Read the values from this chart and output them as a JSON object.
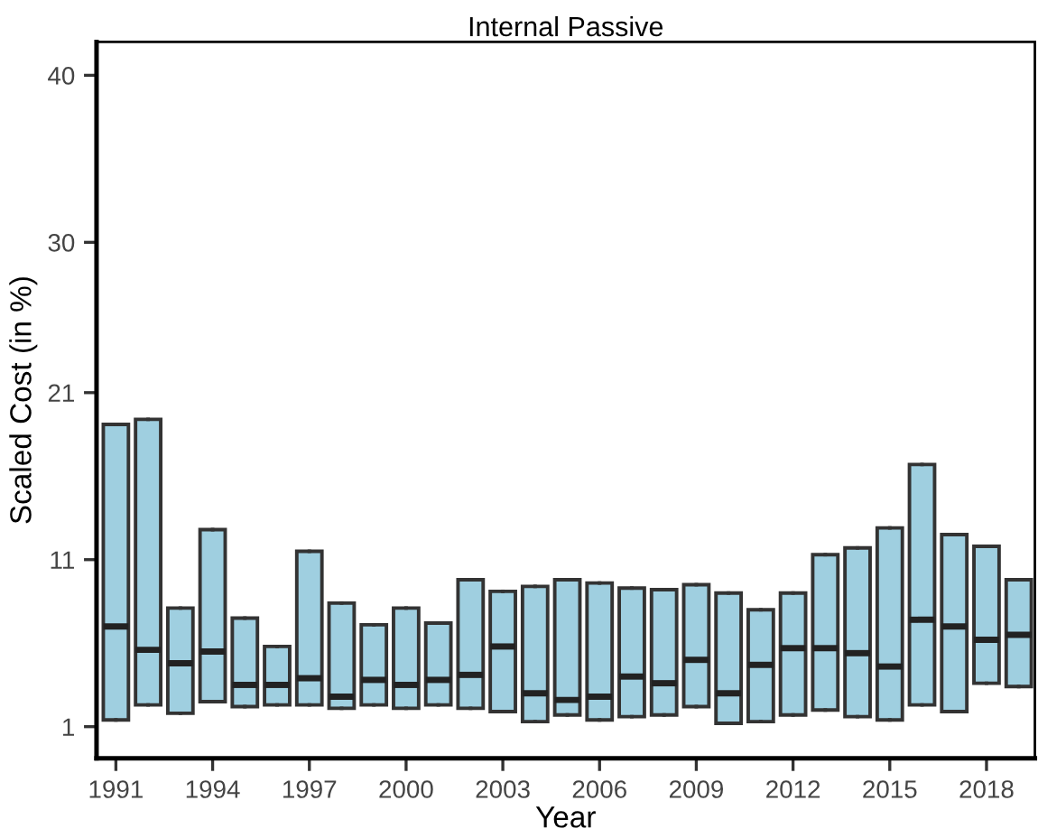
{
  "chart_data": {
    "type": "box",
    "title": "Internal Passive",
    "xlabel": "Year",
    "ylabel": "Scaled Cost (in %)",
    "x": [
      1991,
      1992,
      1993,
      1994,
      1995,
      1996,
      1997,
      1998,
      1999,
      2000,
      2001,
      2002,
      2003,
      2004,
      2005,
      2006,
      2007,
      2008,
      2009,
      2010,
      2011,
      2012,
      2013,
      2014,
      2015,
      2016,
      2017,
      2018,
      2019
    ],
    "color": "#9fcfe0",
    "boxes": [
      {
        "low": 1.4,
        "q1": 1.4,
        "median": 7.0,
        "q3": 19.1,
        "high": 19.1
      },
      {
        "low": 2.3,
        "q1": 2.3,
        "median": 5.6,
        "q3": 19.4,
        "high": 19.4
      },
      {
        "low": 1.8,
        "q1": 1.8,
        "median": 4.8,
        "q3": 8.1,
        "high": 8.1
      },
      {
        "low": 2.5,
        "q1": 2.5,
        "median": 5.5,
        "q3": 12.8,
        "high": 12.8
      },
      {
        "low": 2.2,
        "q1": 2.2,
        "median": 3.5,
        "q3": 7.5,
        "high": 7.5
      },
      {
        "low": 2.3,
        "q1": 2.3,
        "median": 3.5,
        "q3": 5.8,
        "high": 5.8
      },
      {
        "low": 2.3,
        "q1": 2.3,
        "median": 3.9,
        "q3": 11.5,
        "high": 11.5
      },
      {
        "low": 2.1,
        "q1": 2.1,
        "median": 2.8,
        "q3": 8.4,
        "high": 8.4
      },
      {
        "low": 2.3,
        "q1": 2.3,
        "median": 3.8,
        "q3": 7.1,
        "high": 7.1
      },
      {
        "low": 2.1,
        "q1": 2.1,
        "median": 3.5,
        "q3": 8.1,
        "high": 8.1
      },
      {
        "low": 2.3,
        "q1": 2.3,
        "median": 3.8,
        "q3": 7.2,
        "high": 7.2
      },
      {
        "low": 2.1,
        "q1": 2.1,
        "median": 4.1,
        "q3": 9.8,
        "high": 9.8
      },
      {
        "low": 1.9,
        "q1": 1.9,
        "median": 5.8,
        "q3": 9.1,
        "high": 9.1
      },
      {
        "low": 1.3,
        "q1": 1.3,
        "median": 3.0,
        "q3": 9.4,
        "high": 9.4
      },
      {
        "low": 1.7,
        "q1": 1.7,
        "median": 2.6,
        "q3": 9.8,
        "high": 9.8
      },
      {
        "low": 1.4,
        "q1": 1.4,
        "median": 2.8,
        "q3": 9.6,
        "high": 9.6
      },
      {
        "low": 1.6,
        "q1": 1.6,
        "median": 4.0,
        "q3": 9.3,
        "high": 9.3
      },
      {
        "low": 1.7,
        "q1": 1.7,
        "median": 3.6,
        "q3": 9.2,
        "high": 9.2
      },
      {
        "low": 2.2,
        "q1": 2.2,
        "median": 5.0,
        "q3": 9.5,
        "high": 9.5
      },
      {
        "low": 1.2,
        "q1": 1.2,
        "median": 3.0,
        "q3": 9.0,
        "high": 9.0
      },
      {
        "low": 1.3,
        "q1": 1.3,
        "median": 4.7,
        "q3": 8.0,
        "high": 8.0
      },
      {
        "low": 1.7,
        "q1": 1.7,
        "median": 5.7,
        "q3": 9.0,
        "high": 9.0
      },
      {
        "low": 2.0,
        "q1": 2.0,
        "median": 5.7,
        "q3": 11.3,
        "high": 11.3
      },
      {
        "low": 1.6,
        "q1": 1.6,
        "median": 5.4,
        "q3": 11.7,
        "high": 11.7
      },
      {
        "low": 1.4,
        "q1": 1.4,
        "median": 4.6,
        "q3": 12.9,
        "high": 12.9
      },
      {
        "low": 2.3,
        "q1": 2.3,
        "median": 7.4,
        "q3": 16.7,
        "high": 16.7
      },
      {
        "low": 1.9,
        "q1": 1.9,
        "median": 7.0,
        "q3": 12.5,
        "high": 12.5
      },
      {
        "low": 3.6,
        "q1": 3.6,
        "median": 6.2,
        "q3": 11.8,
        "high": 11.8
      },
      {
        "low": 3.4,
        "q1": 3.4,
        "median": 6.5,
        "q3": 9.8,
        "high": 9.8
      }
    ],
    "xlim": [
      1990.4,
      2019.5
    ],
    "xticks": [
      1991,
      1994,
      1997,
      2000,
      2003,
      2006,
      2009,
      2012,
      2015,
      2018
    ],
    "ylim": [
      -0.9,
      42
    ],
    "yticks": [
      1,
      11,
      21,
      30,
      40
    ],
    "grid": false,
    "legend": false
  }
}
